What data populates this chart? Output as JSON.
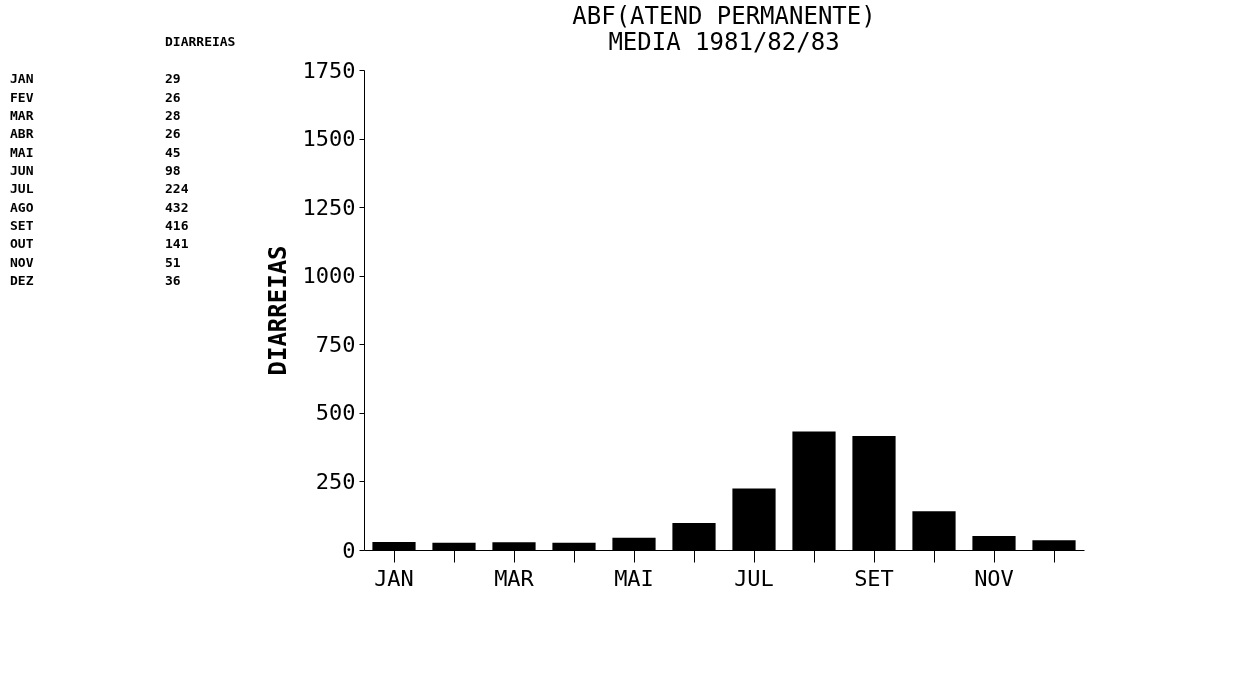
{
  "chart_data": [
    {
      "type": "other",
      "legend_title": "DIARREIAS",
      "categories": [
        "JAN",
        "FEV",
        "MAR",
        "ABR",
        "MAI",
        "JUN",
        "JUL",
        "AGO",
        "SET",
        "OUT",
        "NOV",
        "DEZ"
      ],
      "values": [
        29,
        26,
        28,
        26,
        45,
        98,
        224,
        432,
        416,
        141,
        51,
        36
      ],
      "data_labels": true
    },
    {
      "type": "bar",
      "title": [
        "ABF(ATEND PERMANENTE)",
        "MEDIA 1981/82/83"
      ],
      "ylabel": "DIARREIAS",
      "categories": [
        "JAN",
        null,
        "MAR",
        null,
        "MAI",
        null,
        "JUL",
        null,
        "SET",
        null,
        "NOV",
        null
      ],
      "values": [
        29,
        26,
        28,
        26,
        45,
        98,
        224,
        432,
        416,
        141,
        51,
        36
      ],
      "color": "#000000",
      "ylim": [
        0,
        1750
      ],
      "yticks": [
        0,
        250,
        500,
        750,
        1000,
        1250,
        1500,
        1750
      ],
      "grid": false
    }
  ]
}
